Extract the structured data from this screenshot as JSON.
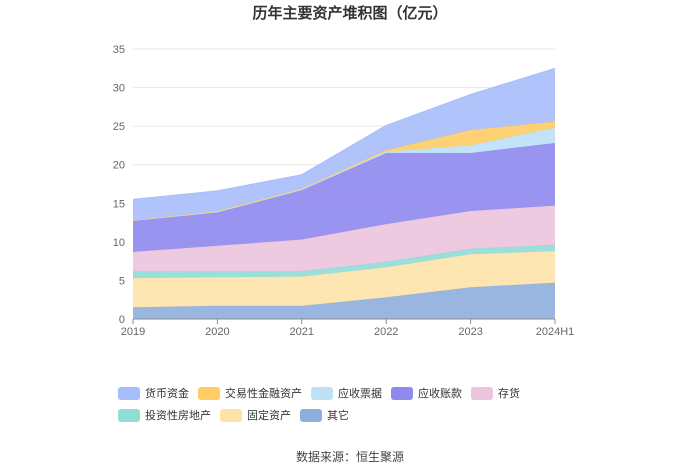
{
  "chart_data": {
    "type": "area",
    "stacked": true,
    "title": "历年主要资产堆积图（亿元）",
    "categories": [
      "2019",
      "2020",
      "2021",
      "2022",
      "2023",
      "2024H1"
    ],
    "ylim": [
      0,
      35
    ],
    "yticks": [
      0,
      5,
      10,
      15,
      20,
      25,
      30,
      35
    ],
    "grid": true,
    "legend_position": "bottom",
    "series": [
      {
        "name": "其它",
        "color": "#8eaede",
        "values": [
          1.5,
          1.7,
          1.7,
          2.8,
          4.1,
          4.7
        ]
      },
      {
        "name": "固定资产",
        "color": "#fde3a8",
        "values": [
          3.8,
          3.7,
          3.8,
          3.9,
          4.3,
          4.1
        ]
      },
      {
        "name": "投资性房地产",
        "color": "#90dcd7",
        "values": [
          0.9,
          0.8,
          0.7,
          0.7,
          0.7,
          0.8
        ]
      },
      {
        "name": "存货",
        "color": "#ecc4dd",
        "values": [
          2.5,
          3.3,
          4.1,
          4.9,
          4.9,
          5.1
        ]
      },
      {
        "name": "应收账款",
        "color": "#8f88ef",
        "values": [
          4.0,
          4.3,
          6.4,
          9.2,
          7.5,
          8.1
        ]
      },
      {
        "name": "应收票据",
        "color": "#bde1f7",
        "values": [
          0.1,
          0.1,
          0.1,
          0.2,
          1.0,
          2.0
        ]
      },
      {
        "name": "交易性金融资产",
        "color": "#ffcc66",
        "values": [
          0.0,
          0.1,
          0.1,
          0.2,
          2.0,
          0.8
        ]
      },
      {
        "name": "货币资金",
        "color": "#a7bdfa",
        "values": [
          2.7,
          2.6,
          1.8,
          3.2,
          4.6,
          6.9
        ]
      }
    ],
    "legend_order": [
      "货币资金",
      "交易性金融资产",
      "应收票据",
      "应收账款",
      "存货",
      "投资性房地产",
      "固定资产",
      "其它"
    ]
  },
  "source": "数据来源：恒生聚源"
}
